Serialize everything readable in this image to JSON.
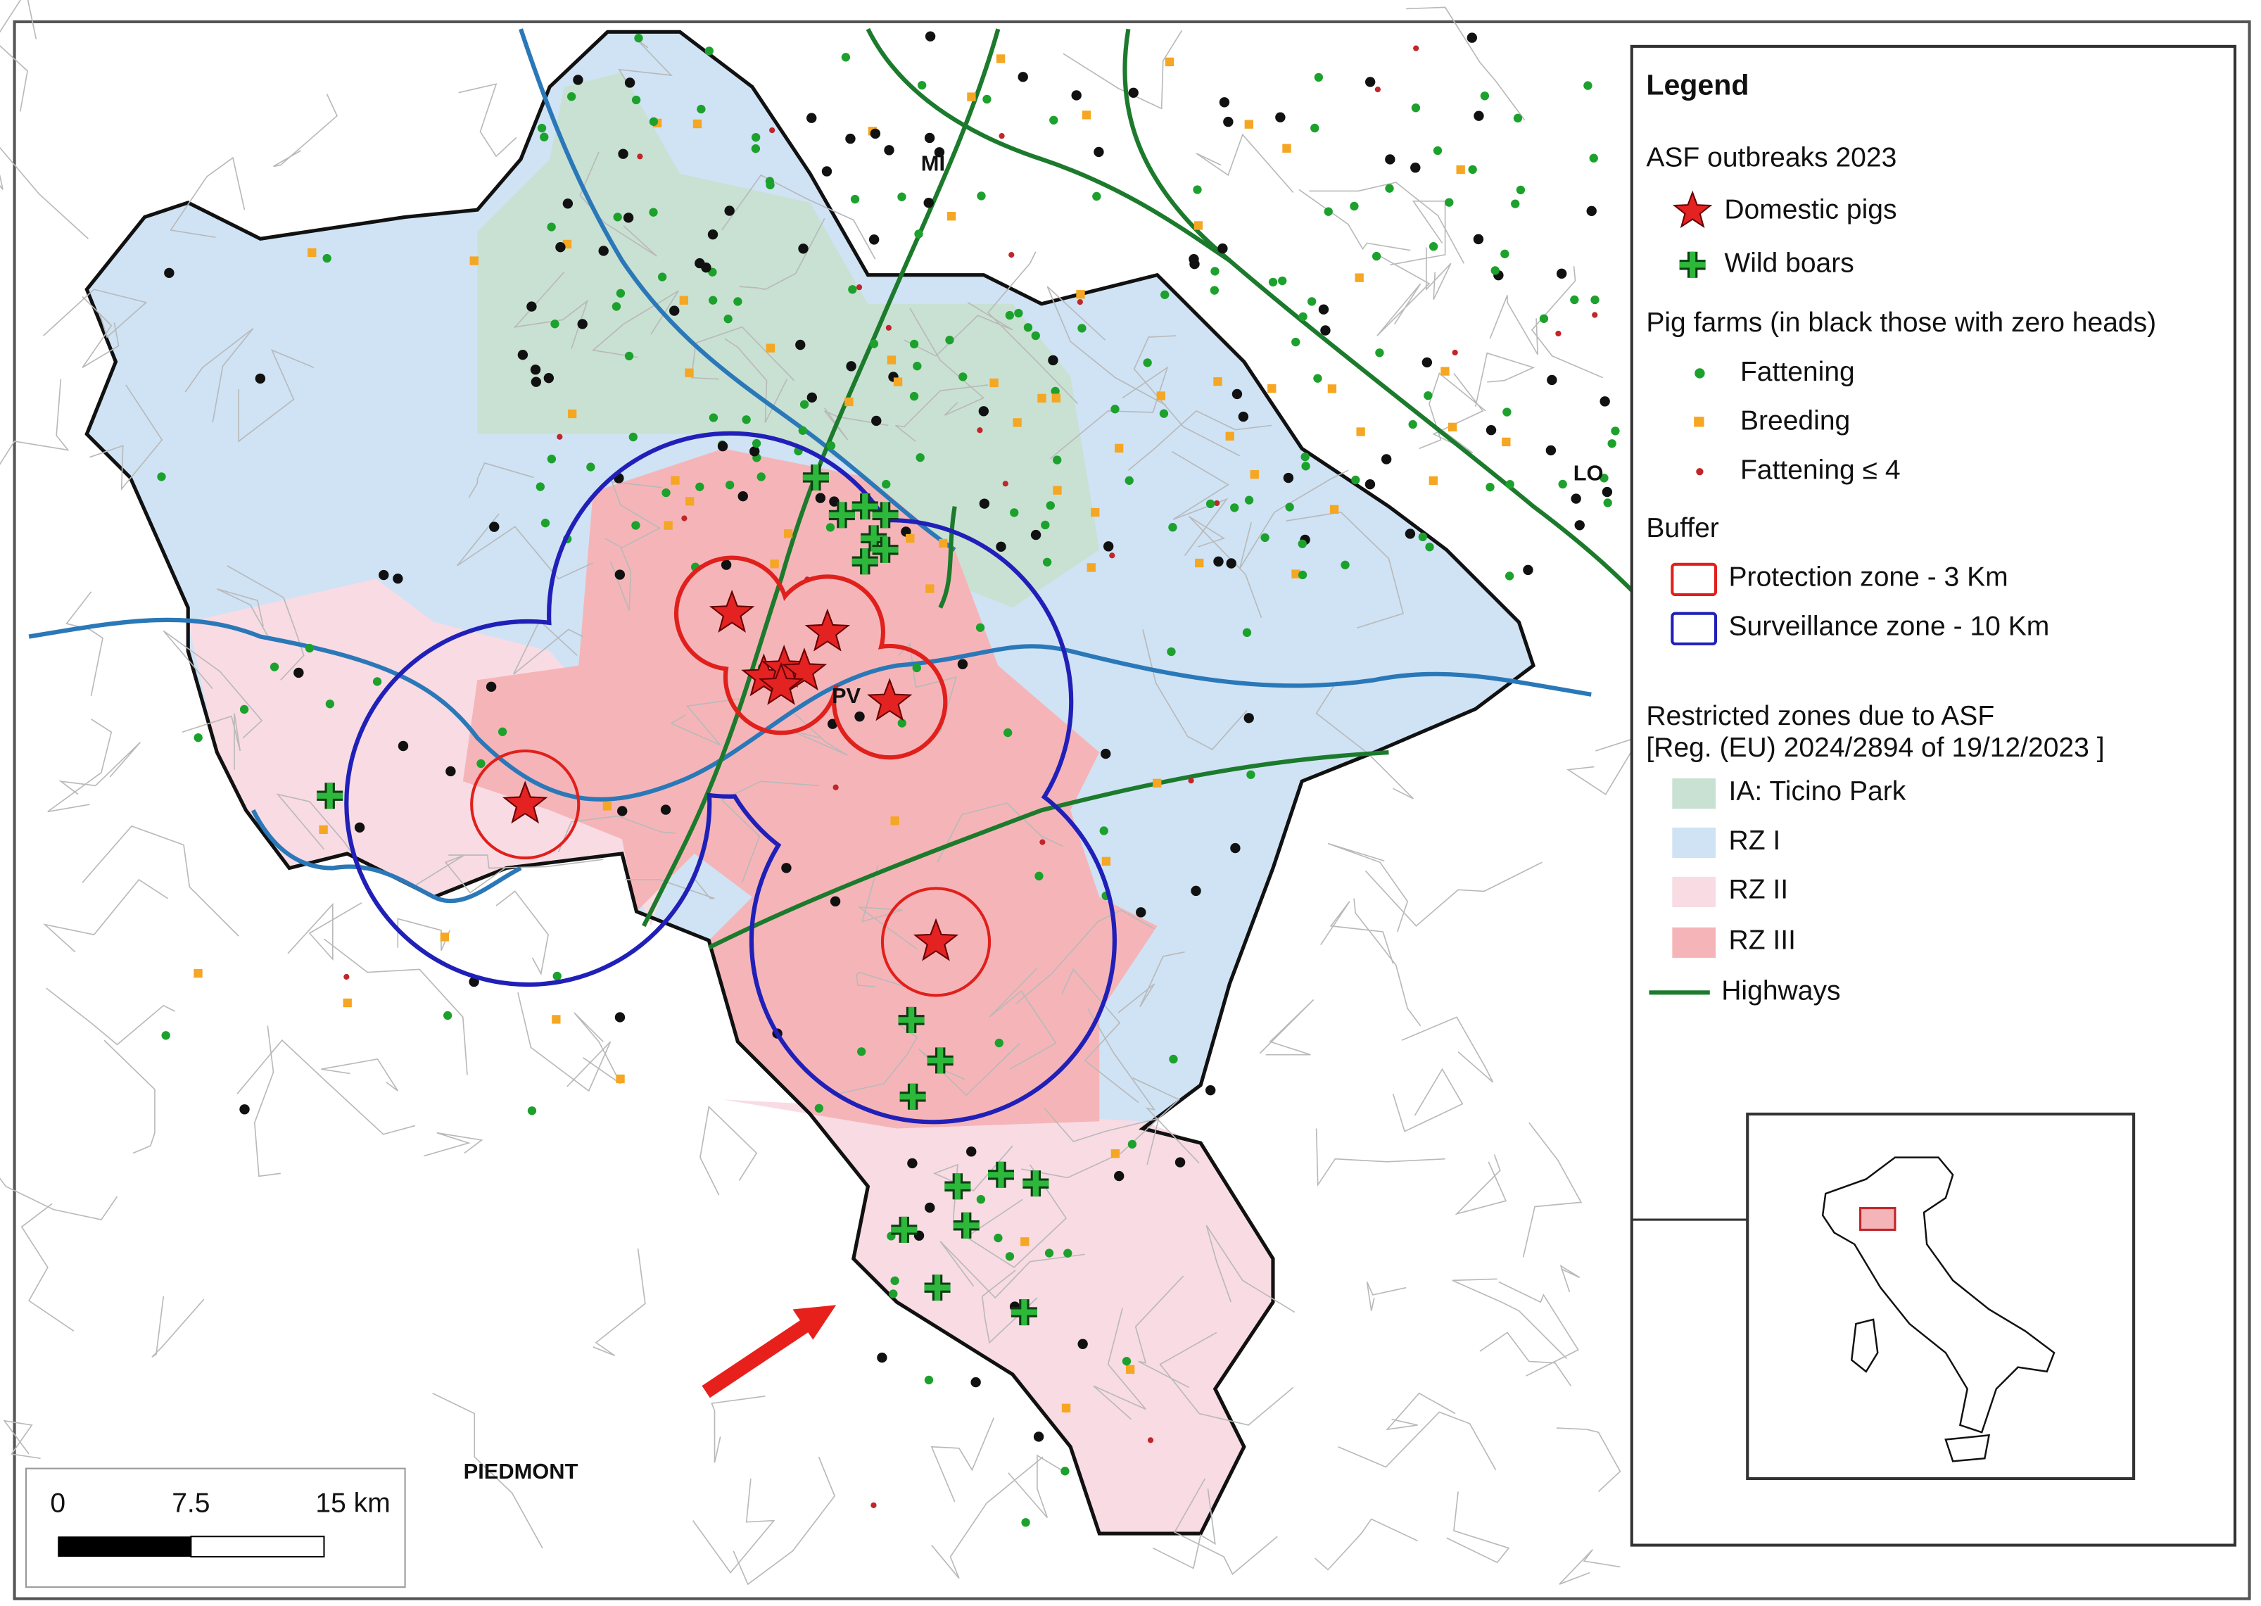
{
  "map": {
    "labels": {
      "milan": "MI",
      "lodi": "LO",
      "pavia": "PV",
      "piedmont": "PIEDMONT"
    }
  },
  "scale_bar": {
    "labels": [
      "0",
      "7.5",
      "15 km"
    ]
  },
  "legend": {
    "title": "Legend",
    "outbreaks": {
      "title": "ASF outbreaks 2023",
      "items": [
        "Domestic pigs",
        "Wild boars"
      ]
    },
    "farms": {
      "title": "Pig farms (in black those with zero heads)",
      "items": [
        "Fattening",
        "Breeding",
        "Fattening ≤ 4"
      ]
    },
    "buffer": {
      "title": "Buffer",
      "items": [
        "Protection zone - 3 Km",
        "Surveillance zone - 10 Km"
      ]
    },
    "zones": {
      "title_lines": [
        "Restricted zones due to ASF",
        "[Reg. (EU) 2024/2894 of 19/12/2023 ]"
      ],
      "items": [
        "IA: Ticino Park",
        "RZ I",
        "RZ II",
        "RZ III",
        "Highways"
      ]
    }
  }
}
